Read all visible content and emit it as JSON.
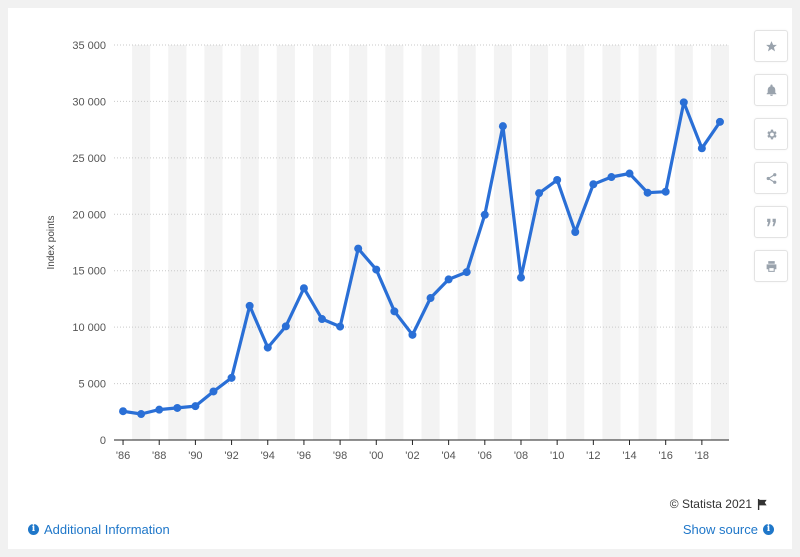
{
  "chart_data": {
    "type": "line",
    "title": "",
    "xlabel": "",
    "ylabel": "Index points",
    "ylim": [
      0,
      35000
    ],
    "yticks": [
      0,
      5000,
      10000,
      15000,
      20000,
      25000,
      30000,
      35000
    ],
    "ytick_labels": [
      "0",
      "5 000",
      "10 000",
      "15 000",
      "20 000",
      "25 000",
      "30 000",
      "35 000"
    ],
    "x": [
      1986,
      1987,
      1988,
      1989,
      1990,
      1991,
      1992,
      1993,
      1994,
      1995,
      1996,
      1997,
      1998,
      1999,
      2000,
      2001,
      2002,
      2003,
      2004,
      2005,
      2006,
      2007,
      2008,
      2009,
      2010,
      2011,
      2012,
      2013,
      2014,
      2015,
      2016,
      2017,
      2018,
      2019
    ],
    "xtick_labels": [
      "'86",
      "'88",
      "'90",
      "'92",
      "'94",
      "'96",
      "'98",
      "'00",
      "'02",
      "'04",
      "'06",
      "'08",
      "'10",
      "'12",
      "'14",
      "'16",
      "'18"
    ],
    "series": [
      {
        "values": [
          2550,
          2300,
          2690,
          2840,
          3000,
          4300,
          5510,
          11890,
          8190,
          10070,
          13450,
          10720,
          10050,
          16960,
          15100,
          11400,
          9320,
          12580,
          14230,
          14880,
          19960,
          27810,
          14390,
          21870,
          23040,
          18430,
          22660,
          23300,
          23610,
          21910,
          22000,
          29920,
          25850,
          28190
        ]
      }
    ],
    "line_color": "#2a6fd6",
    "grid": true,
    "legend": "none"
  },
  "toolbar": {
    "icons": [
      "star-icon",
      "bell-icon",
      "gear-icon",
      "share-icon",
      "quote-icon",
      "print-icon"
    ]
  },
  "footer": {
    "copyright": "© Statista 2021",
    "additional_info": "Additional Information",
    "show_source": "Show source"
  }
}
